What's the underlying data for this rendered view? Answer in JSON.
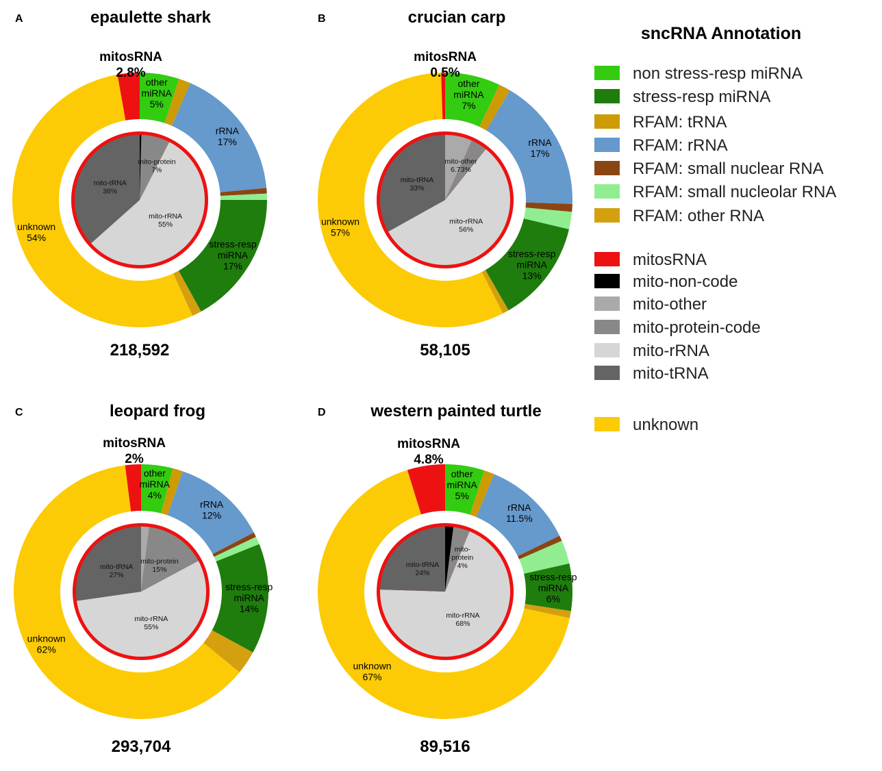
{
  "legend": {
    "title": "sncRNA Annotation",
    "items": [
      {
        "label": "non stress-resp miRNA",
        "color": "#33cc11"
      },
      {
        "label": "stress-resp miRNA",
        "color": "#1e7d0c"
      },
      {
        "label": "RFAM: tRNA",
        "color": "#cc9b06"
      },
      {
        "label": "RFAM: rRNA",
        "color": "#6699cc"
      },
      {
        "label": "RFAM: small nuclear RNA",
        "color": "#8b4513"
      },
      {
        "label": "RFAM: small nucleolar RNA",
        "color": "#90ee90"
      },
      {
        "label": "RFAM: other RNA",
        "color": "#d4a010"
      },
      {
        "label": "mitosRNA",
        "color": "#ee1111"
      },
      {
        "label": "mito-non-code",
        "color": "#000000"
      },
      {
        "label": "mito-other",
        "color": "#aaaaaa"
      },
      {
        "label": "mito-protein-code",
        "color": "#888888"
      },
      {
        "label": "mito-rRNA",
        "color": "#d6d6d6"
      },
      {
        "label": "mito-tRNA",
        "color": "#646464"
      },
      {
        "label": "unknown",
        "color": "#fccb05"
      }
    ]
  },
  "chart_data": [
    {
      "type": "pie",
      "panel": "A",
      "title": "epaulette shark",
      "total": "218,592",
      "mito_callout": {
        "label": "mitosRNA",
        "value": "2.8%"
      },
      "outer": [
        {
          "category": "non stress-resp miRNA",
          "value": 5,
          "label": [
            "other",
            "miRNA",
            "5%"
          ]
        },
        {
          "category": "RFAM: tRNA",
          "value": 1.5
        },
        {
          "category": "RFAM: rRNA",
          "value": 17,
          "label": [
            "rRNA",
            "17%"
          ]
        },
        {
          "category": "RFAM: small nuclear RNA",
          "value": 0.7
        },
        {
          "category": "RFAM: small nucleolar RNA",
          "value": 0.8
        },
        {
          "category": "stress-resp miRNA",
          "value": 17,
          "label": [
            "stress-resp",
            "miRNA",
            "17%"
          ]
        },
        {
          "category": "RFAM: other RNA",
          "value": 1.2
        },
        {
          "category": "unknown",
          "value": 54,
          "label": [
            "unknown",
            "54%"
          ]
        },
        {
          "category": "mitosRNA",
          "value": 2.8
        }
      ],
      "inner": [
        {
          "category": "mito-non-code",
          "value": 0.4
        },
        {
          "category": "mito-protein-code",
          "value": 7,
          "label": [
            "mito-protein",
            "7%"
          ]
        },
        {
          "category": "mito-rRNA",
          "value": 55,
          "label": [
            "mito-rRNA",
            "55%"
          ]
        },
        {
          "category": "mito-tRNA",
          "value": 36,
          "label": [
            "mito-tRNA",
            "36%"
          ]
        }
      ]
    },
    {
      "type": "pie",
      "panel": "B",
      "title": "crucian carp",
      "total": "58,105",
      "mito_callout": {
        "label": "mitosRNA",
        "value": "0.5%"
      },
      "outer": [
        {
          "category": "non stress-resp miRNA",
          "value": 7,
          "label": [
            "other",
            "miRNA",
            "7%"
          ]
        },
        {
          "category": "RFAM: tRNA",
          "value": 1.5
        },
        {
          "category": "RFAM: rRNA",
          "value": 17,
          "label": [
            "rRNA",
            "17%"
          ]
        },
        {
          "category": "RFAM: small nuclear RNA",
          "value": 1
        },
        {
          "category": "RFAM: small nucleolar RNA",
          "value": 2.2
        },
        {
          "category": "stress-resp miRNA",
          "value": 13,
          "label": [
            "stress-resp",
            "miRNA",
            "13%"
          ]
        },
        {
          "category": "RFAM: other RNA",
          "value": 0.8
        },
        {
          "category": "unknown",
          "value": 57,
          "label": [
            "unknown",
            "57%"
          ]
        },
        {
          "category": "mitosRNA",
          "value": 0.5
        }
      ],
      "inner": [
        {
          "category": "mito-other",
          "value": 6.73,
          "label": [
            "mito-other",
            "6.73%"
          ]
        },
        {
          "category": "mito-protein-code",
          "value": 4
        },
        {
          "category": "mito-rRNA",
          "value": 56,
          "label": [
            "mito-rRNA",
            "56%"
          ]
        },
        {
          "category": "mito-tRNA",
          "value": 33,
          "label": [
            "mito-tRNA",
            "33%"
          ]
        }
      ]
    },
    {
      "type": "pie",
      "panel": "C",
      "title": "leopard frog",
      "total": "293,704",
      "mito_callout": {
        "label": "mitosRNA",
        "value": "2%"
      },
      "outer": [
        {
          "category": "non stress-resp miRNA",
          "value": 4,
          "label": [
            "other",
            "miRNA",
            "4%"
          ]
        },
        {
          "category": "RFAM: tRNA",
          "value": 1.3
        },
        {
          "category": "RFAM: rRNA",
          "value": 12,
          "label": [
            "rRNA",
            "12%"
          ]
        },
        {
          "category": "RFAM: small nuclear RNA",
          "value": 0.6
        },
        {
          "category": "RFAM: small nucleolar RNA",
          "value": 1
        },
        {
          "category": "stress-resp miRNA",
          "value": 14,
          "label": [
            "stress-resp",
            "miRNA",
            "14%"
          ]
        },
        {
          "category": "RFAM: other RNA",
          "value": 3
        },
        {
          "category": "unknown",
          "value": 62,
          "label": [
            "unknown",
            "62%"
          ]
        },
        {
          "category": "mitosRNA",
          "value": 2
        }
      ],
      "inner": [
        {
          "category": "mito-other",
          "value": 2
        },
        {
          "category": "mito-protein-code",
          "value": 15,
          "label": [
            "mito-protein",
            "15%"
          ]
        },
        {
          "category": "mito-rRNA",
          "value": 55,
          "label": [
            "mito-rRNA",
            "55%"
          ]
        },
        {
          "category": "mito-tRNA",
          "value": 27,
          "label": [
            "mito-tRNA",
            "27%"
          ]
        }
      ]
    },
    {
      "type": "pie",
      "panel": "D",
      "title": "western painted turtle",
      "total": "89,516",
      "mito_callout": {
        "label": "mitosRNA",
        "value": "4.8%"
      },
      "outer": [
        {
          "category": "non stress-resp miRNA",
          "value": 5,
          "label": [
            "other",
            "miRNA",
            "5%"
          ]
        },
        {
          "category": "RFAM: tRNA",
          "value": 1.3
        },
        {
          "category": "RFAM: rRNA",
          "value": 11.5,
          "label": [
            "rRNA",
            "11.5%"
          ]
        },
        {
          "category": "RFAM: small nuclear RNA",
          "value": 0.7
        },
        {
          "category": "RFAM: small nucleolar RNA",
          "value": 3
        },
        {
          "category": "stress-resp miRNA",
          "value": 6,
          "label": [
            "stress-resp",
            "miRNA",
            "6%"
          ]
        },
        {
          "category": "RFAM: other RNA",
          "value": 0.9
        },
        {
          "category": "unknown",
          "value": 67,
          "label": [
            "unknown",
            "67%"
          ]
        },
        {
          "category": "mitosRNA",
          "value": 4.8
        }
      ],
      "inner": [
        {
          "category": "mito-non-code",
          "value": 2
        },
        {
          "category": "mito-protein-code",
          "value": 4,
          "label": [
            "mito-",
            "protein",
            "4%"
          ]
        },
        {
          "category": "mito-rRNA",
          "value": 68,
          "label": [
            "mito-rRNA",
            "68%"
          ]
        },
        {
          "category": "mito-tRNA",
          "value": 24,
          "label": [
            "mito-tRNA",
            "24%"
          ]
        }
      ]
    }
  ]
}
